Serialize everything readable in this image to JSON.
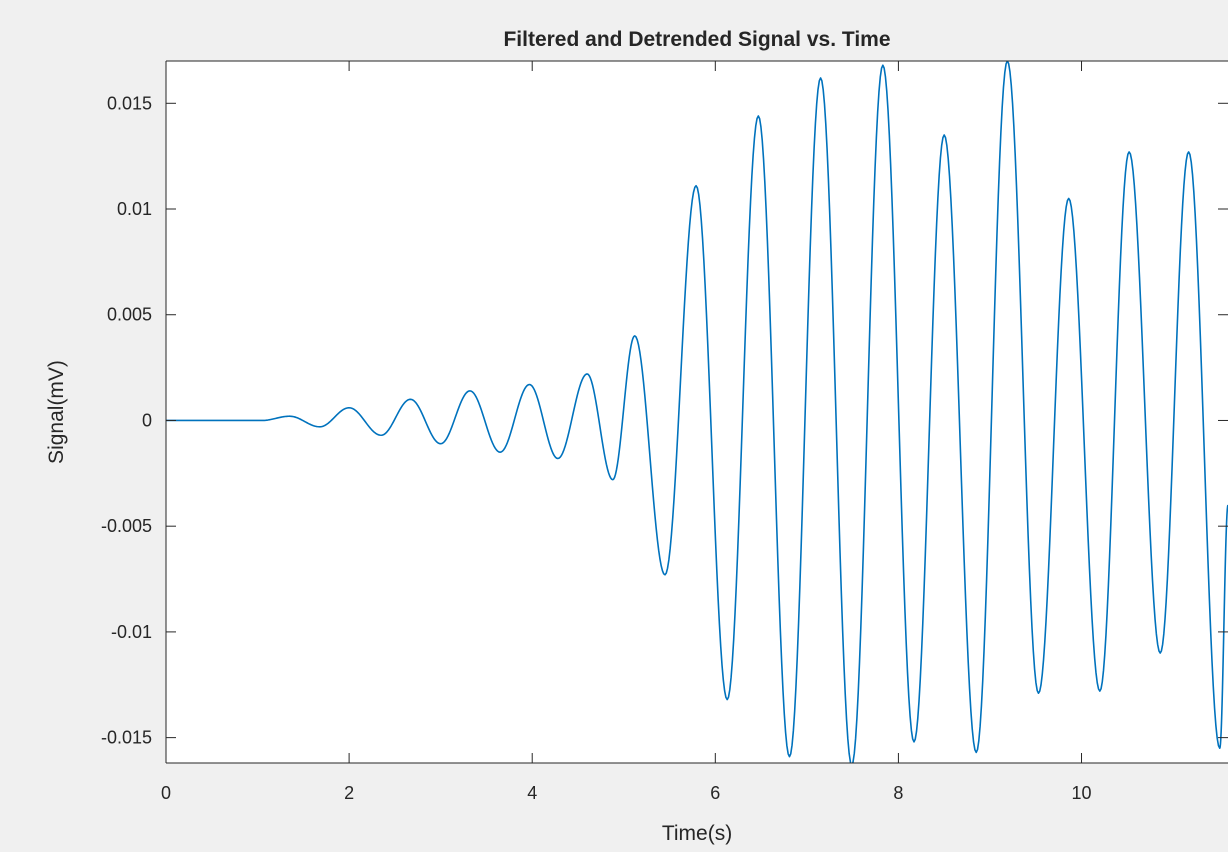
{
  "chart_data": {
    "type": "line",
    "title": "Filtered and Detrended Signal vs. Time",
    "xlabel": "Time(s)",
    "ylabel": "Signal(mV)",
    "xlim": [
      0,
      11.6
    ],
    "ylim": [
      -0.0162,
      0.017
    ],
    "xticks": [
      0,
      2,
      4,
      6,
      8,
      10
    ],
    "xtick_labels": [
      "0",
      "2",
      "4",
      "6",
      "8",
      "10"
    ],
    "yticks": [
      -0.015,
      -0.01,
      -0.005,
      0,
      0.005,
      0.01,
      0.015
    ],
    "ytick_labels": [
      "-0.015",
      "-0.01",
      "-0.005",
      "0",
      "0.005",
      "0.01",
      "0.015"
    ],
    "grid": false,
    "series": [
      {
        "color": "#0072bd",
        "extrema": {
          "x": [
            0,
            0.7,
            1.05,
            1.35,
            1.68,
            2.0,
            2.35,
            2.67,
            3.0,
            3.32,
            3.65,
            3.97,
            4.28,
            4.6,
            4.88,
            5.12,
            5.45,
            5.79,
            6.13,
            6.47,
            6.81,
            7.15,
            7.49,
            7.83,
            8.17,
            8.5,
            8.85,
            9.19,
            9.53,
            9.86,
            10.2,
            10.52,
            10.86,
            11.17,
            11.51,
            11.6
          ],
          "y": [
            0,
            0,
            0,
            0.0002,
            -0.0003,
            0.0006,
            -0.0007,
            0.001,
            -0.0011,
            0.0014,
            -0.0015,
            0.0017,
            -0.0018,
            0.0022,
            -0.0028,
            0.004,
            -0.0073,
            0.0111,
            -0.0132,
            0.0144,
            -0.0159,
            0.0162,
            -0.0163,
            0.0168,
            -0.0152,
            0.0135,
            -0.0157,
            0.017,
            -0.0129,
            0.0105,
            -0.0128,
            0.0127,
            -0.011,
            0.0127,
            -0.0155,
            -0.004
          ]
        }
      }
    ]
  }
}
